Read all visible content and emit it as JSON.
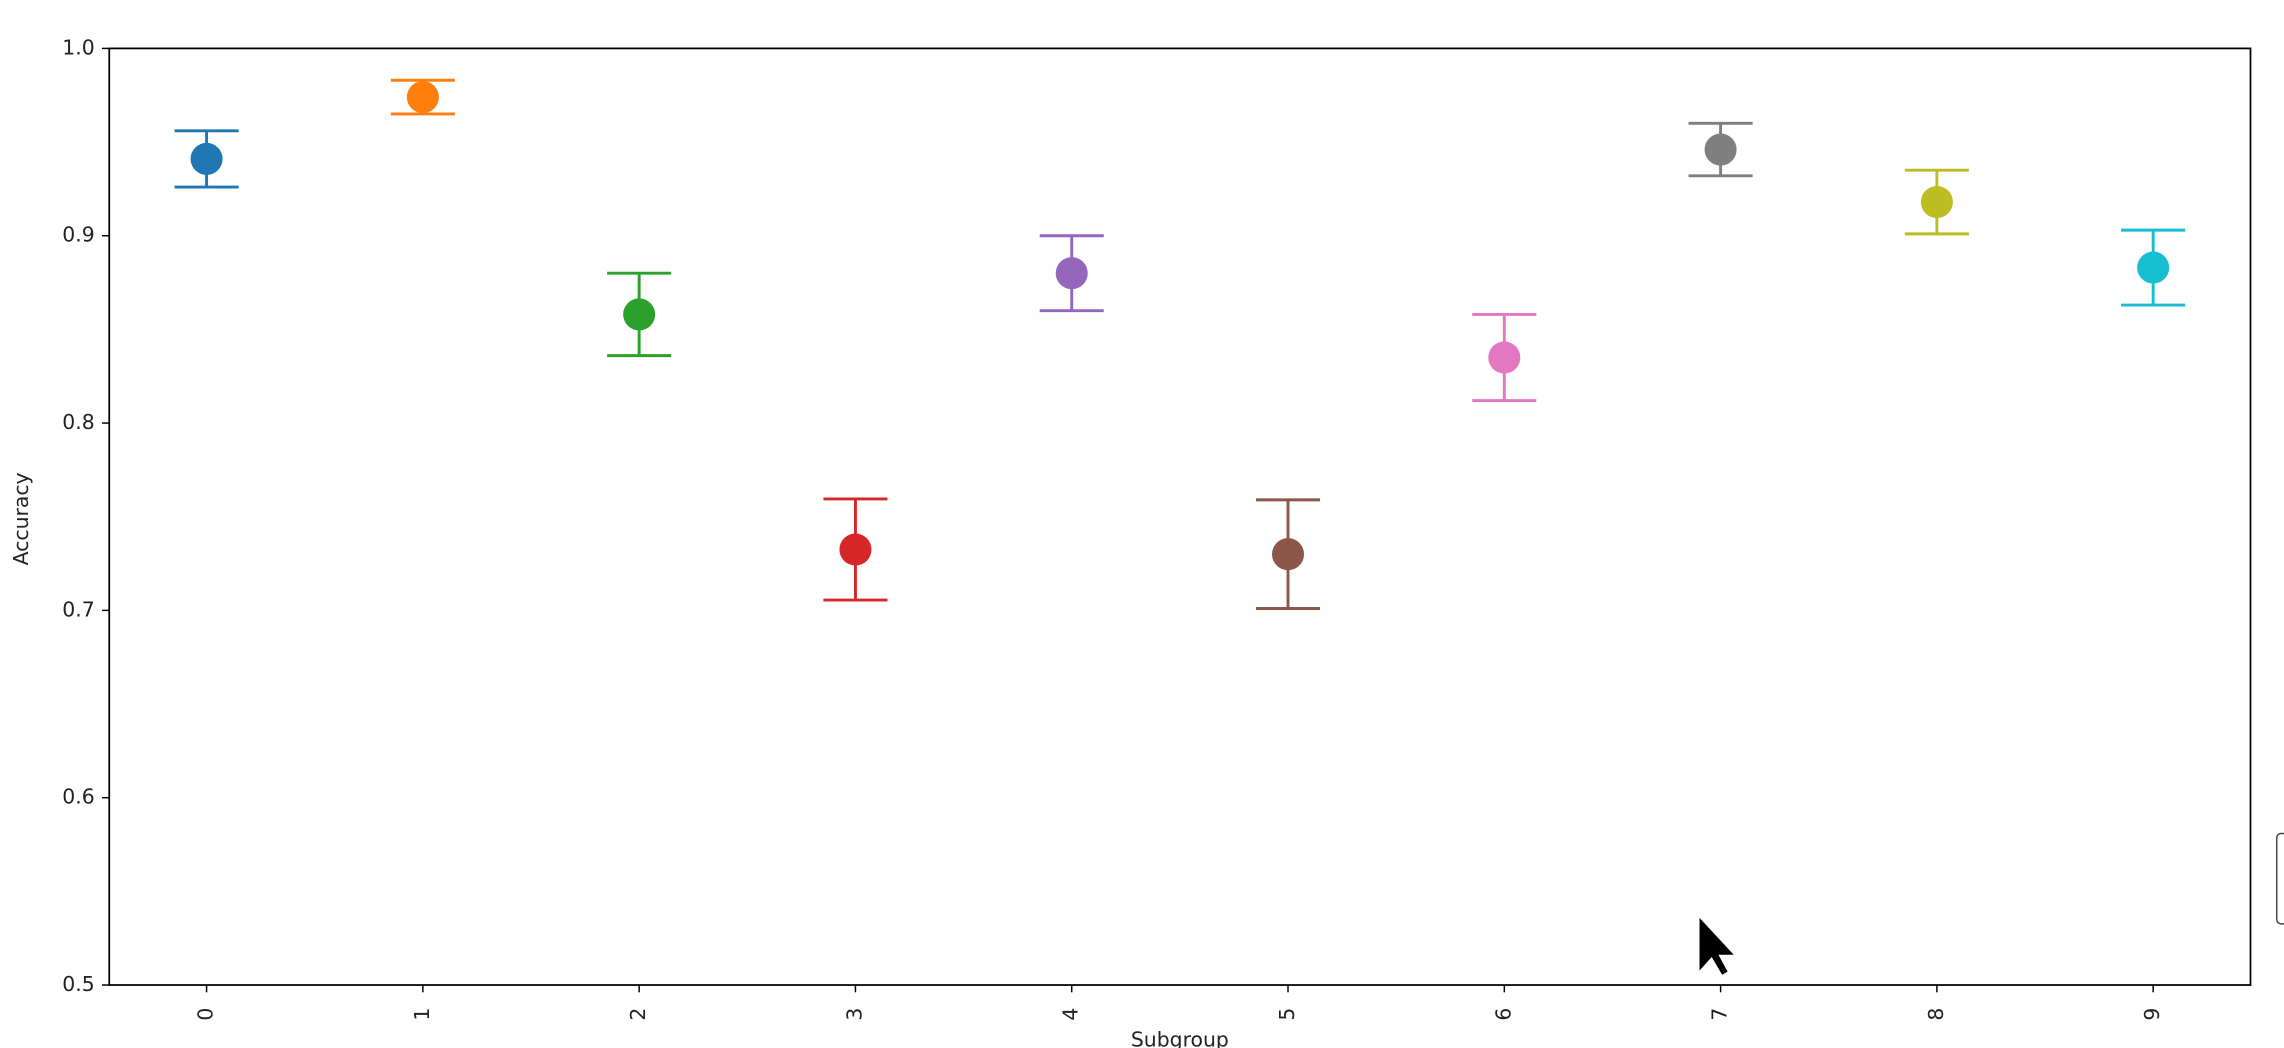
{
  "chart_data": {
    "type": "errorbar",
    "x_label": "Subgroup",
    "y_label": "Accuracy",
    "categories": [
      "0",
      "1",
      "2",
      "3",
      "4",
      "5",
      "6",
      "7",
      "8",
      "9"
    ],
    "values": [
      0.941,
      0.974,
      0.858,
      0.7325,
      0.88,
      0.73,
      0.835,
      0.946,
      0.918,
      0.883
    ],
    "errors": [
      0.015,
      0.009,
      0.022,
      0.027,
      0.02,
      0.029,
      0.023,
      0.014,
      0.017,
      0.02
    ],
    "colors": [
      "#1f77b4",
      "#ff7f0e",
      "#2ca02c",
      "#d62728",
      "#9467bd",
      "#8c564b",
      "#e377c2",
      "#7f7f7f",
      "#bcbd22",
      "#17becf"
    ],
    "ylim": [
      0.5,
      1.0
    ],
    "yticks": [
      0.5,
      0.6,
      0.7,
      0.8,
      0.9,
      {
        "value": 1.0,
        "label": "1.0"
      }
    ]
  }
}
